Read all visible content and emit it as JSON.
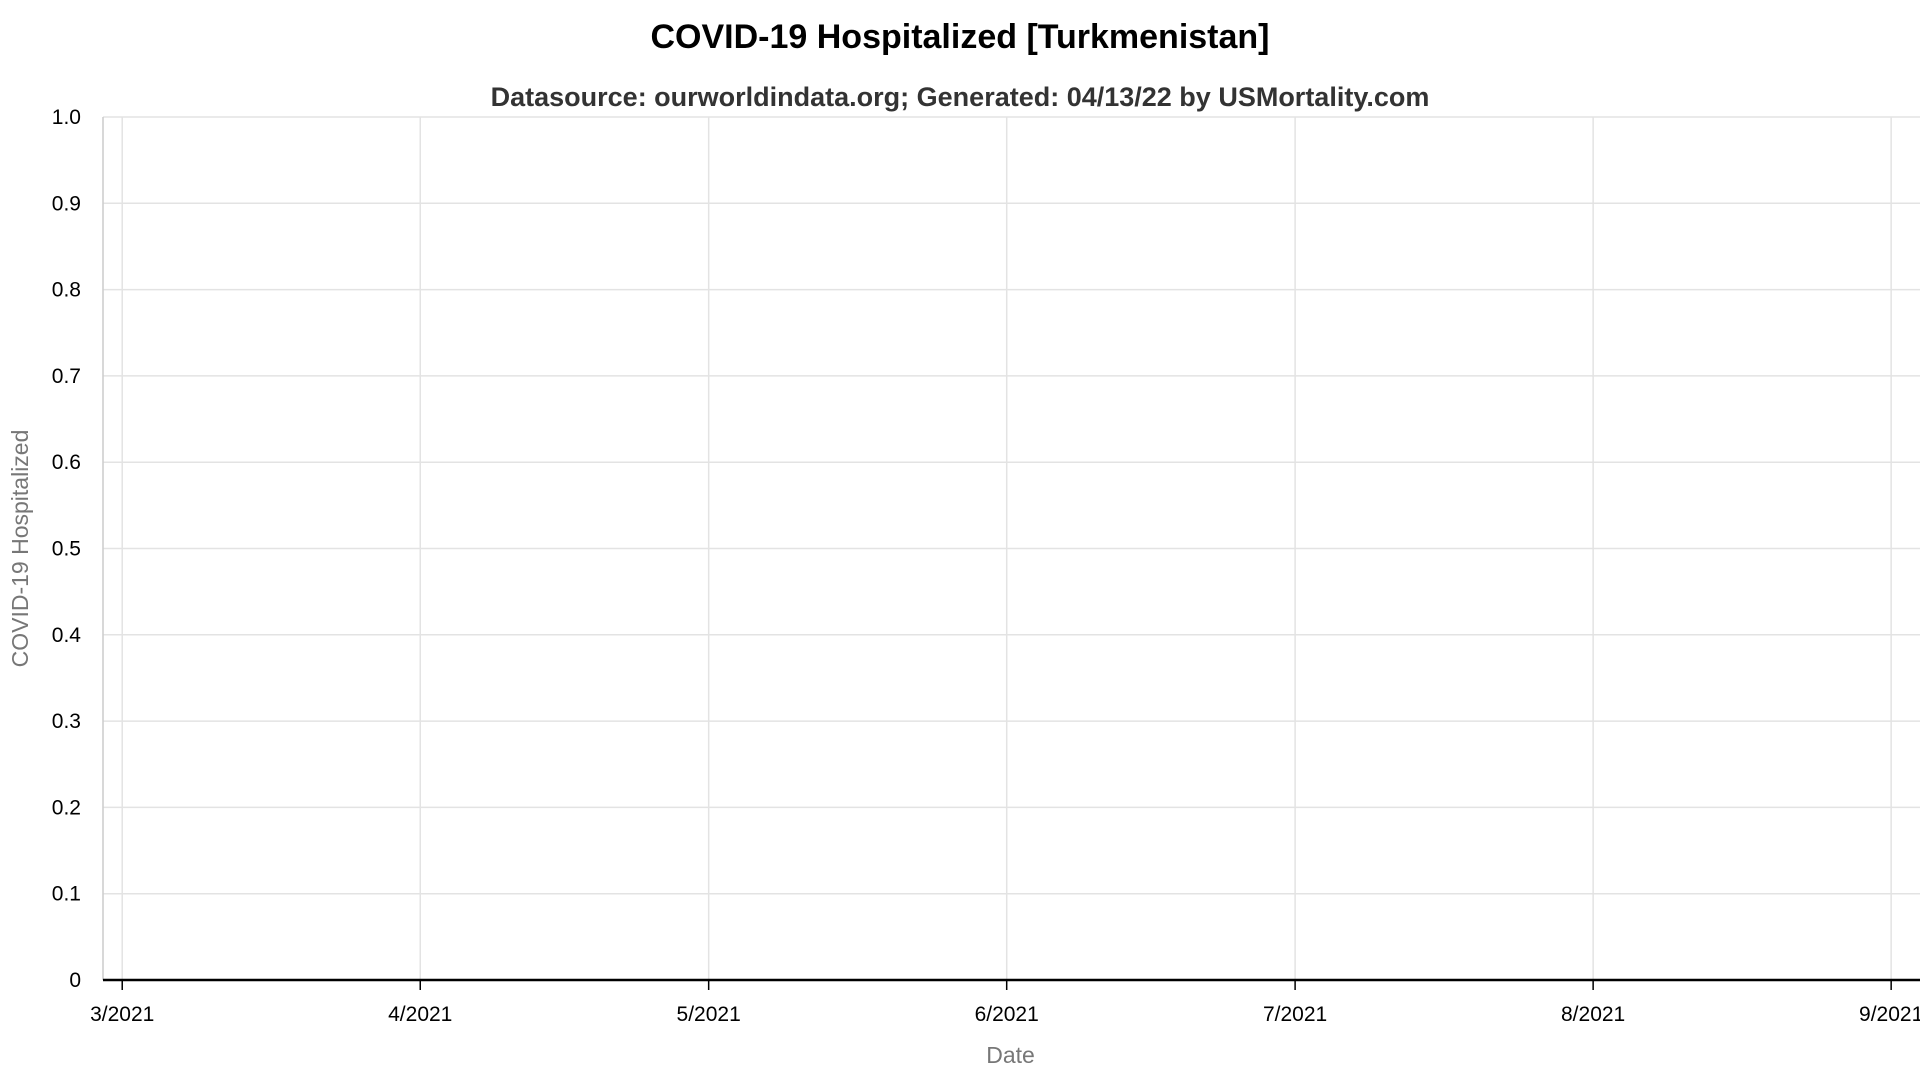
{
  "chart_data": {
    "type": "line",
    "title": "COVID-19 Hospitalized [Turkmenistan]",
    "subtitle": "Datasource: ourworldindata.org; Generated: 04/13/22 by USMortality.com",
    "xlabel": "Date",
    "ylabel": "COVID-19 Hospitalized",
    "xlim": [
      "2021-02-27",
      "2021-09-04"
    ],
    "ylim": [
      0,
      1
    ],
    "grid": true,
    "x_ticks": [
      {
        "date": "2021-03-01",
        "label": "3/2021"
      },
      {
        "date": "2021-04-01",
        "label": "4/2021"
      },
      {
        "date": "2021-05-01",
        "label": "5/2021"
      },
      {
        "date": "2021-06-01",
        "label": "6/2021"
      },
      {
        "date": "2021-07-01",
        "label": "7/2021"
      },
      {
        "date": "2021-08-01",
        "label": "8/2021"
      },
      {
        "date": "2021-09-01",
        "label": "9/2021"
      }
    ],
    "y_ticks": [
      {
        "value": 0,
        "label": "0"
      },
      {
        "value": 0.1,
        "label": "0.1"
      },
      {
        "value": 0.2,
        "label": "0.2"
      },
      {
        "value": 0.3,
        "label": "0.3"
      },
      {
        "value": 0.4,
        "label": "0.4"
      },
      {
        "value": 0.5,
        "label": "0.5"
      },
      {
        "value": 0.6,
        "label": "0.6"
      },
      {
        "value": 0.7,
        "label": "0.7"
      },
      {
        "value": 0.8,
        "label": "0.8"
      },
      {
        "value": 0.9,
        "label": "0.9"
      },
      {
        "value": 1,
        "label": "1.0"
      }
    ],
    "series": [
      {
        "color": "#000000",
        "x": [
          "2021-02-27",
          "2021-09-04"
        ],
        "values": [
          0,
          0
        ]
      }
    ],
    "colors": {
      "grid": "#e3e3e3",
      "axis": "#cccccc",
      "series": "#000000"
    }
  }
}
